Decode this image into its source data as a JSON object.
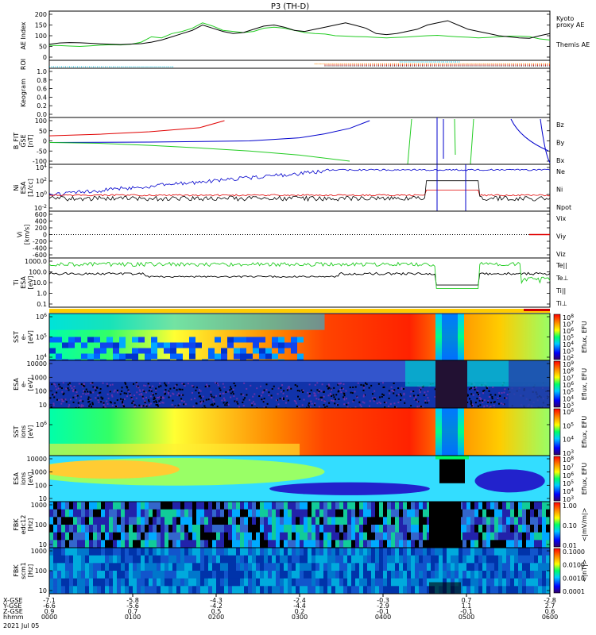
{
  "title": "P3 (TH-D)",
  "colors": {
    "red": "#e00000",
    "green": "#22cc22",
    "blue": "#0000cc",
    "black": "#000000",
    "orange": "#ff8800"
  },
  "chart_data": [
    {
      "id": "ae",
      "type": "line",
      "ylabel_lines": [
        "AE Index"
      ],
      "yticks": [
        "200",
        "150",
        "100",
        "50",
        "0"
      ],
      "legend": [
        {
          "text": "Kyoto",
          "color": "green"
        },
        {
          "text": "proxy AE",
          "color": "green"
        },
        {
          "text": "Themis AE",
          "color": "black"
        }
      ],
      "series": [
        {
          "name": "Kyoto proxy AE",
          "color": "green",
          "y": [
            55,
            54,
            52,
            50,
            53,
            56,
            58,
            57,
            60,
            70,
            95,
            90,
            110,
            120,
            135,
            160,
            145,
            125,
            120,
            115,
            120,
            135,
            140,
            135,
            125,
            115,
            110,
            108,
            100,
            98,
            96,
            95,
            92,
            90,
            92,
            94,
            97,
            100,
            102,
            98,
            95,
            93,
            90,
            92,
            95,
            98,
            98,
            96,
            85,
            80
          ]
        },
        {
          "name": "Themis AE",
          "color": "black",
          "y": [
            60,
            66,
            68,
            67,
            65,
            62,
            60,
            59,
            61,
            63,
            70,
            80,
            95,
            110,
            125,
            150,
            135,
            120,
            110,
            115,
            130,
            145,
            150,
            140,
            125,
            120,
            130,
            140,
            150,
            160,
            148,
            135,
            110,
            105,
            110,
            120,
            130,
            150,
            160,
            170,
            150,
            130,
            120,
            110,
            100,
            95,
            90,
            88,
            100,
            110
          ]
        }
      ]
    },
    {
      "id": "roi",
      "type": "line",
      "ylabel_lines": [
        "ROI"
      ],
      "yticks": [],
      "segments": [
        {
          "color": "cyan",
          "x0": 0.0,
          "x1": 0.25,
          "y": 0.82
        },
        {
          "color": "cyan",
          "x0": 0.7,
          "x1": 0.82,
          "y": 0.2
        },
        {
          "color": "orange",
          "x0": 0.53,
          "x1": 1.0,
          "y": 0.45
        },
        {
          "color": "red",
          "x0": 0.55,
          "x1": 1.0,
          "y": 0.6
        },
        {
          "color": "gray",
          "x0": 0.55,
          "x1": 1.0,
          "y": 0.72
        }
      ]
    },
    {
      "id": "keogram",
      "type": "line",
      "ylabel_lines": [
        "Keogram"
      ],
      "yticks": [
        "1.0",
        "0.8",
        "0.6",
        "0.4",
        "0.2",
        "0.0"
      ]
    },
    {
      "id": "bfield",
      "type": "line",
      "ylabel_lines": [
        "B_FIT",
        "GSE",
        "[nT]"
      ],
      "yticks": [
        "100",
        "50",
        "0",
        "-50",
        "-100"
      ],
      "ylim": [
        -100,
        100
      ],
      "legend": [
        {
          "text": "Bz",
          "color": "red"
        },
        {
          "text": "By",
          "color": "green"
        },
        {
          "text": "Bx",
          "color": "blue"
        }
      ],
      "series": [
        {
          "name": "Bz",
          "color": "red",
          "x": [
            0,
            0.1,
            0.2,
            0.3,
            0.35
          ],
          "y": [
            25,
            33,
            45,
            65,
            100
          ]
        },
        {
          "name": "Bx",
          "color": "blue",
          "x": [
            0,
            0.2,
            0.4,
            0.5,
            0.55,
            0.6,
            0.64
          ],
          "y": [
            -8,
            -6,
            0,
            15,
            35,
            62,
            100
          ]
        },
        {
          "name": "By",
          "color": "green",
          "x": [
            0,
            0.1,
            0.2,
            0.3,
            0.4,
            0.5,
            0.6
          ],
          "y": [
            -8,
            -12,
            -22,
            -35,
            -50,
            -70,
            -100
          ]
        }
      ]
    },
    {
      "id": "density",
      "type": "line",
      "ylabel_lines": [
        "Ni",
        "ESA",
        "[1/cc]"
      ],
      "yticks": [
        "10^4",
        "10^2",
        "10^0",
        "10^-2"
      ],
      "legend": [
        {
          "text": "Ne",
          "color": "red"
        },
        {
          "text": "Ni",
          "color": "black"
        },
        {
          "text": "Npot",
          "color": "blue"
        }
      ]
    },
    {
      "id": "velocity",
      "type": "line",
      "ylabel_lines": [
        "Vi",
        "[km/s]"
      ],
      "yticks": [
        "600",
        "400",
        "200",
        "0",
        "-200",
        "-400",
        "-600"
      ],
      "legend": [
        {
          "text": "Vix",
          "color": "red"
        },
        {
          "text": "Viy",
          "color": "green"
        },
        {
          "text": "Viz",
          "color": "blue"
        }
      ]
    },
    {
      "id": "temperature",
      "type": "line",
      "ylabel_lines": [
        "Ti",
        "ESA",
        "[eV]"
      ],
      "yticks": [
        "1000.0",
        "100.0",
        "10.0",
        "1.0",
        "0.1"
      ],
      "legend": [
        {
          "text": "Te||",
          "color": "black"
        },
        {
          "text": "Te⊥",
          "color": "red"
        },
        {
          "text": "Ti||",
          "color": "green"
        },
        {
          "text": "Ti⊥",
          "color": "blue"
        }
      ]
    },
    {
      "id": "sst_e",
      "type": "heatmap",
      "ylabel_lines": [
        "SST",
        "e-",
        "[eV]"
      ],
      "yticks": [
        "10^6",
        "10^5",
        "10^4"
      ],
      "cbar": {
        "label": "Eflux, EFU",
        "ticks": [
          "10^8",
          "10^7",
          "10^6",
          "10^5",
          "10^4",
          "10^3",
          "10^2"
        ]
      }
    },
    {
      "id": "esa_e",
      "type": "heatmap",
      "ylabel_lines": [
        "ESA",
        "e-",
        "[eV]"
      ],
      "yticks": [
        "10000",
        "1000",
        "100",
        "10"
      ],
      "cbar": {
        "label": "Eflux, EFU",
        "ticks": [
          "10^9",
          "10^8",
          "10^7",
          "10^6",
          "10^5",
          "10^4",
          "10^3"
        ]
      }
    },
    {
      "id": "sst_i",
      "type": "heatmap",
      "ylabel_lines": [
        "SST",
        "ions",
        "[eV]"
      ],
      "yticks": [
        "10^6"
      ],
      "cbar": {
        "label": "Eflux, EFU",
        "ticks": [
          "10^6",
          "10^5",
          "10^4",
          "10^3"
        ]
      }
    },
    {
      "id": "esa_i",
      "type": "heatmap",
      "ylabel_lines": [
        "ESA",
        "ions",
        "[eV]"
      ],
      "yticks": [
        "10000",
        "1000",
        "100",
        "10"
      ],
      "cbar": {
        "label": "Eflux, EFU",
        "ticks": [
          "10^8",
          "10^7",
          "10^6",
          "10^5",
          "10^4",
          "10^3"
        ]
      }
    },
    {
      "id": "fbk_edc",
      "type": "heatmap",
      "ylabel_lines": [
        "FBK",
        "edc12",
        "[Hz]"
      ],
      "yticks": [
        "1000",
        "100",
        "10"
      ],
      "cbar": {
        "label": "<|mV/m|>",
        "ticks": [
          "1.00",
          "0.10",
          "0.01"
        ]
      }
    },
    {
      "id": "fbk_scm",
      "type": "heatmap",
      "ylabel_lines": [
        "FBK",
        "scm1",
        "[Hz]"
      ],
      "yticks": [
        "1000",
        "100",
        "10"
      ],
      "cbar": {
        "label": "<|nT|>",
        "ticks": [
          "0.1000",
          "0.0100",
          "0.0010",
          "0.0001"
        ]
      }
    }
  ],
  "time_axis": {
    "row_labels": [
      "X-GSE",
      "Y-GSE",
      "Z-GSE",
      "hhmm",
      "2021 Jul 05"
    ],
    "columns": [
      {
        "x": "-7.1",
        "y": "-6.6",
        "z": "0.9",
        "t": "0000"
      },
      {
        "x": "-5.8",
        "y": "-5.6",
        "z": "0.7",
        "t": "0100"
      },
      {
        "x": "-4.3",
        "y": "-4.2",
        "z": "0.5",
        "t": "0200"
      },
      {
        "x": "-2.4",
        "y": "-4.4",
        "z": "0.2",
        "t": "0300"
      },
      {
        "x": "-0.3",
        "y": "-2.9",
        "z": "-0.1",
        "t": "0400"
      },
      {
        "x": "0.7",
        "y": "1.1",
        "z": "-0.1",
        "t": "0500"
      },
      {
        "x": "-2.8",
        "y": "2.7",
        "z": "0.6",
        "t": "0600"
      }
    ]
  }
}
